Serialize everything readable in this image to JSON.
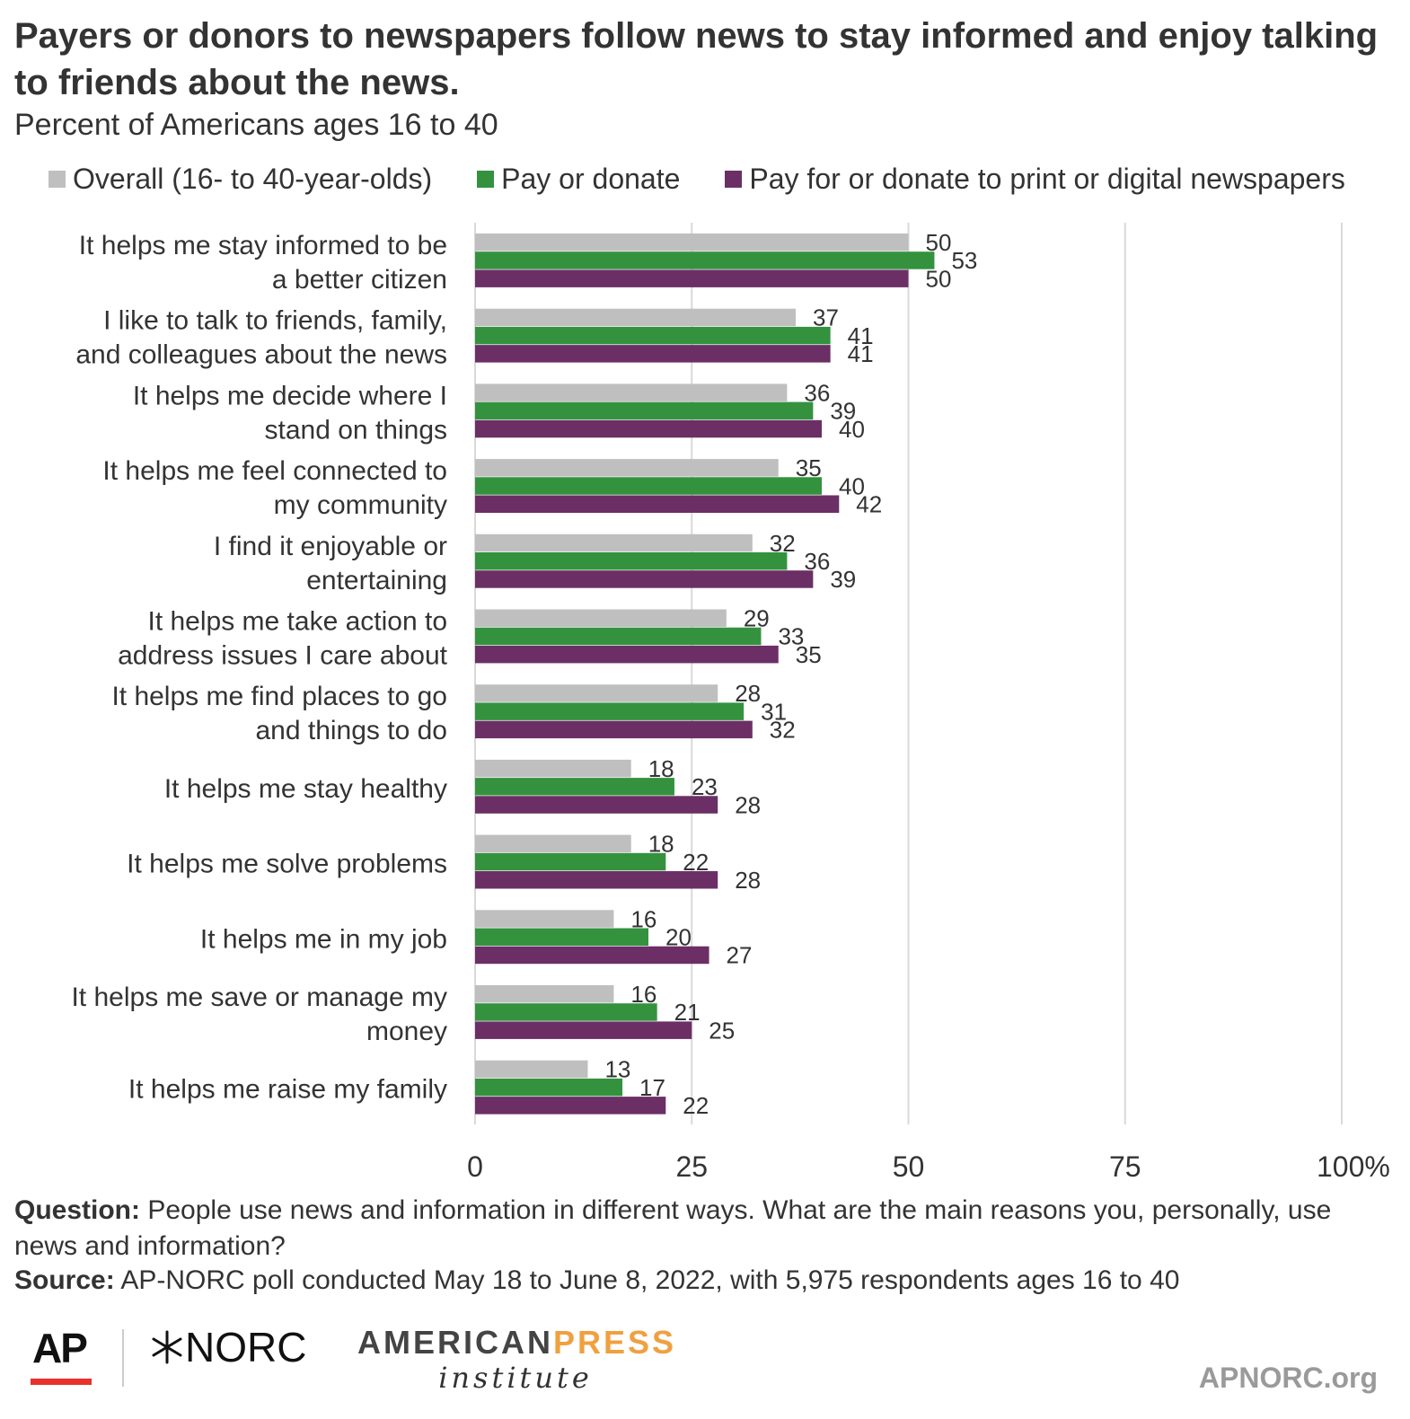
{
  "header": {
    "title": "Payers or donors to newspapers follow news to stay informed and enjoy talking to friends about the news.",
    "subtitle": "Percent of Americans ages 16 to 40"
  },
  "legend": [
    {
      "label": "Overall (16- to 40-year-olds)",
      "color": "#bfbfbf"
    },
    {
      "label": "Pay or donate",
      "color": "#34923f"
    },
    {
      "label": "Pay for or donate to print or digital newspapers",
      "color": "#6b2f65"
    }
  ],
  "chart_data": {
    "type": "bar",
    "orientation": "horizontal",
    "categories": [
      [
        "It helps me stay informed to be",
        "a better citizen"
      ],
      [
        "I like to talk to friends, family,",
        "and colleagues about the news"
      ],
      [
        "It helps me decide where I",
        "stand on things"
      ],
      [
        "It helps me feel connected to",
        "my community"
      ],
      [
        "I find it enjoyable or",
        "entertaining"
      ],
      [
        "It helps me take action to",
        "address issues I care about"
      ],
      [
        "It helps me find places to go",
        "and things to do"
      ],
      [
        "It helps me stay healthy"
      ],
      [
        "It helps me solve problems"
      ],
      [
        "It helps me in my job"
      ],
      [
        "It helps me save or manage my",
        "money"
      ],
      [
        "It helps me raise my family"
      ]
    ],
    "series": [
      {
        "name": "Overall (16- to 40-year-olds)",
        "color": "#bfbfbf",
        "values": [
          50,
          37,
          36,
          35,
          32,
          29,
          28,
          18,
          18,
          16,
          16,
          13
        ]
      },
      {
        "name": "Pay or donate",
        "color": "#34923f",
        "values": [
          53,
          41,
          39,
          40,
          36,
          33,
          31,
          23,
          22,
          20,
          21,
          17
        ]
      },
      {
        "name": "Pay for or donate to print or digital newspapers",
        "color": "#6b2f65",
        "values": [
          50,
          41,
          40,
          42,
          39,
          35,
          32,
          28,
          28,
          27,
          25,
          22
        ]
      }
    ],
    "xlim": [
      0,
      100
    ],
    "xticks": [
      "0",
      "25",
      "50",
      "75",
      "100%"
    ],
    "tick_values": [
      0,
      25,
      50,
      75,
      100
    ],
    "grid": true,
    "legend_position": "top"
  },
  "footer": {
    "question_label": "Question:",
    "question_text": " People use news and information in different ways. What are the main reasons you, personally, use news and information?",
    "source_label": "Source:",
    "source_text": " AP-NORC poll conducted May 18 to June 8, 2022, with 5,975 respondents ages 16 to 40"
  },
  "logos": {
    "ap": "AP",
    "norc": "NORC",
    "api_top_1": "AMERICAN",
    "api_top_2": "PRESS",
    "api_bottom": "institute",
    "site": "APNORC.org"
  }
}
